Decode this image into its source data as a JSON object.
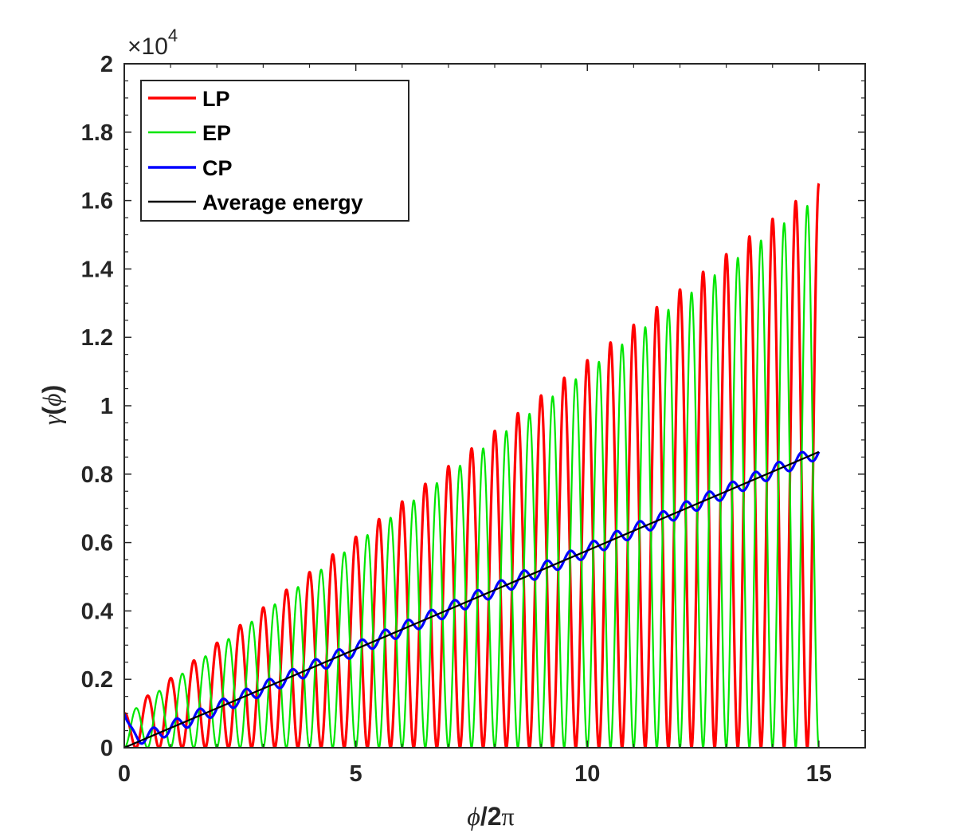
{
  "chart_data": {
    "type": "line",
    "title": "",
    "xlabel": {
      "var": "ϕ",
      "rest": "/2",
      "pi": "π"
    },
    "ylabel": {
      "var": "γ",
      "open": "(",
      "arg": "ϕ",
      "close": ")"
    },
    "xlim": [
      0,
      16
    ],
    "ylim": [
      0,
      20000
    ],
    "y_exponent": {
      "times": "×10",
      "power": "4"
    },
    "x_ticks": [
      0,
      5,
      10,
      15
    ],
    "x_tick_labels": [
      "0",
      "5",
      "10",
      "15"
    ],
    "y_ticks": [
      0,
      2000,
      4000,
      6000,
      8000,
      10000,
      12000,
      14000,
      16000,
      18000,
      20000
    ],
    "y_tick_labels": [
      "0",
      "0.2",
      "0.4",
      "0.6",
      "0.8",
      "1",
      "1.2",
      "1.4",
      "1.6",
      "1.8",
      "2"
    ],
    "grid": false,
    "legend_position": "top-left",
    "x_range": [
      0,
      15
    ],
    "average_energy_slope_per_unit": 577,
    "series": [
      {
        "name": "LP",
        "color": "#ff0000",
        "kind": "oscillation",
        "peak_max": 16500,
        "peak_min": 1000,
        "period": 0.5,
        "phase": 0.0
      },
      {
        "name": "EP",
        "color": "#00e600",
        "kind": "oscillation",
        "peak_max": 16100,
        "peak_min": 900,
        "period": 0.5,
        "phase": 0.25
      },
      {
        "name": "CP",
        "color": "#0000ff",
        "kind": "wobble",
        "start": 1000,
        "end": 8650,
        "ripple": 200,
        "period": 0.5
      },
      {
        "name": "Average energy",
        "color": "#000000",
        "kind": "linear",
        "start": 0,
        "end": 8650
      }
    ],
    "sample_peaks_LP": [
      [
        1,
        1200
      ],
      [
        5,
        5700
      ],
      [
        10,
        10900
      ],
      [
        14.5,
        16500
      ]
    ],
    "sample_peaks_EP": [
      [
        0.75,
        950
      ],
      [
        5.25,
        5250
      ],
      [
        10.25,
        10650
      ],
      [
        14.75,
        16050
      ]
    ]
  }
}
